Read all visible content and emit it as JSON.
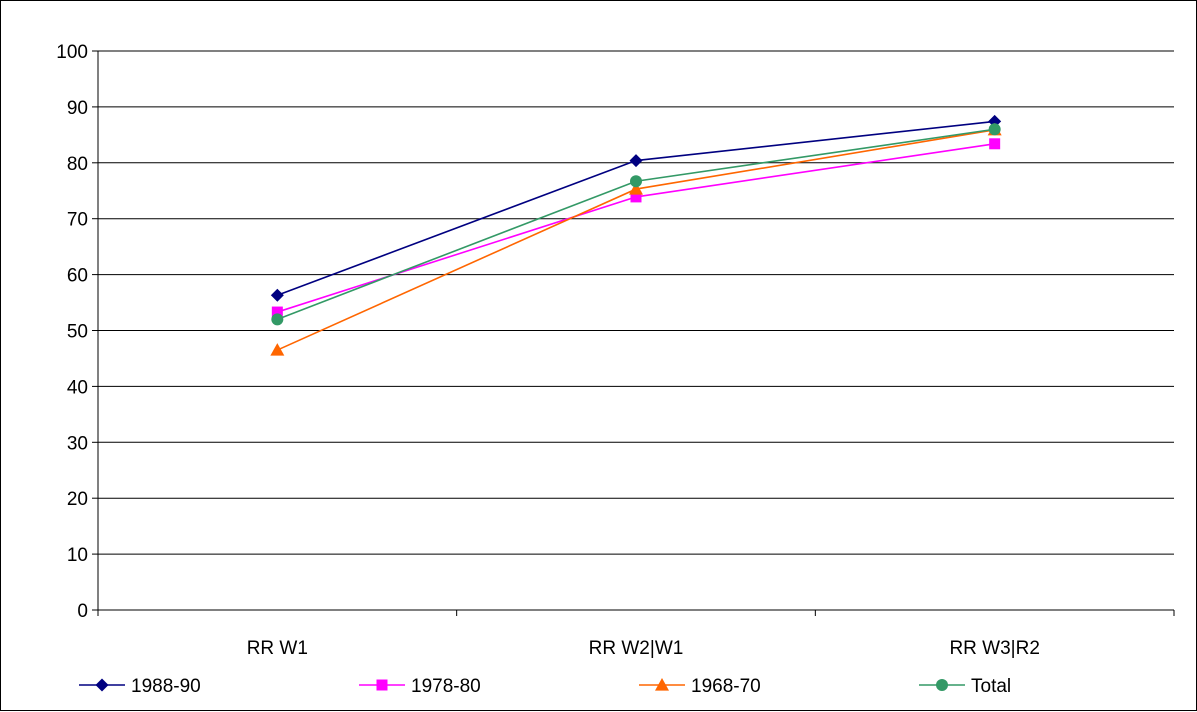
{
  "chart_data": {
    "type": "line",
    "categories": [
      "RR W1",
      "RR W2|W1",
      "RR W3|R2"
    ],
    "series": [
      {
        "name": "1988-90",
        "values": [
          56.3,
          80.4,
          87.4
        ],
        "color": "#000080",
        "marker": "diamond"
      },
      {
        "name": "1978-80",
        "values": [
          53.3,
          73.9,
          83.4
        ],
        "color": "#FF00FF",
        "marker": "square"
      },
      {
        "name": "1968-70",
        "values": [
          46.5,
          75.3,
          85.9
        ],
        "color": "#FF6600",
        "marker": "triangle"
      },
      {
        "name": "Total",
        "values": [
          52.0,
          76.7,
          86.0
        ],
        "color": "#339966",
        "marker": "circle"
      }
    ],
    "ylim": [
      0,
      100
    ],
    "yticks": [
      0,
      10,
      20,
      30,
      40,
      50,
      60,
      70,
      80,
      90,
      100
    ],
    "title": "",
    "xlabel": "",
    "ylabel": "",
    "grid": true,
    "legend": "bottom"
  }
}
